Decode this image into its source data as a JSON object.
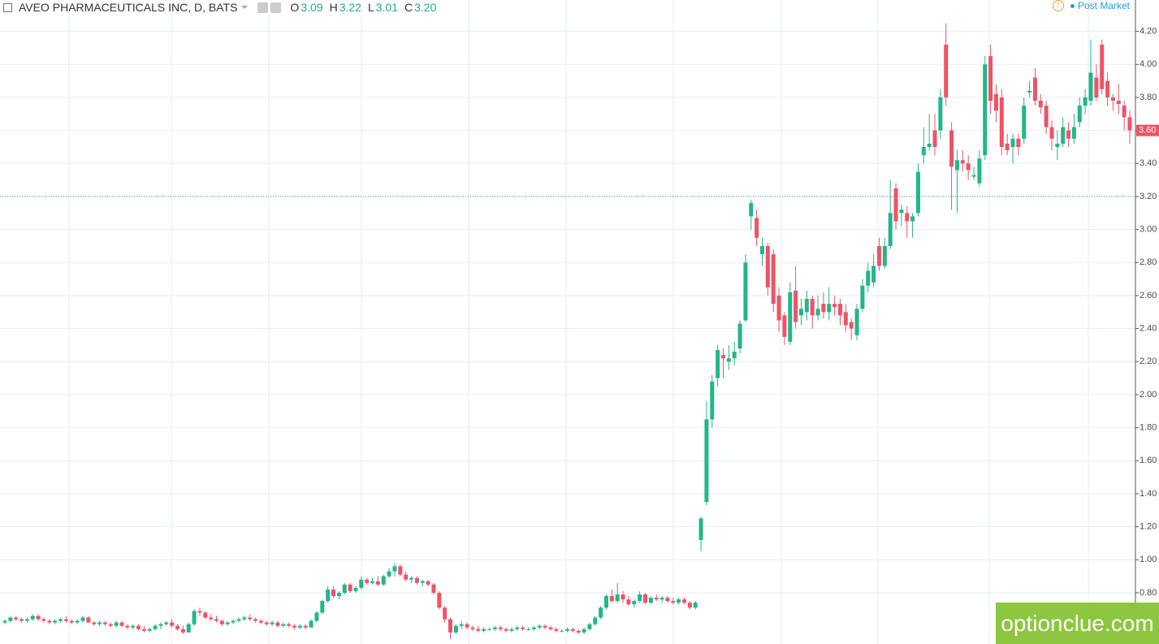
{
  "chart_data": {
    "type": "candlestick",
    "title": "AVEO PHARMACEUTICALS INC, D, BATS",
    "ohlc_legend": [
      {
        "key": "O",
        "value": "3.09"
      },
      {
        "key": "H",
        "value": "3.22"
      },
      {
        "key": "L",
        "value": "3.01"
      },
      {
        "key": "C",
        "value": "3.20"
      }
    ],
    "session_label": "Post Market",
    "watermark": "optionclue.com",
    "up_color": "#22b68a",
    "down_color": "#ee5366",
    "ylim": [
      0.49,
      4.39
    ],
    "yticks": [
      {
        "value": 0.8,
        "label": "0.80"
      },
      {
        "value": 1,
        "label": "1.00"
      },
      {
        "value": 1.2,
        "label": "1.20"
      },
      {
        "value": 1.4,
        "label": "1.40"
      },
      {
        "value": 1.6,
        "label": "1.60"
      },
      {
        "value": 1.8,
        "label": "1.80"
      },
      {
        "value": 2,
        "label": "2.00"
      },
      {
        "value": 2.2,
        "label": "2.20"
      },
      {
        "value": 2.4,
        "label": "2.40"
      },
      {
        "value": 2.6,
        "label": "2.60"
      },
      {
        "value": 2.8,
        "label": "2.80"
      },
      {
        "value": 3,
        "label": "3.00"
      },
      {
        "value": 3.2,
        "label": "3.20"
      },
      {
        "value": 3.4,
        "label": "3.40"
      },
      {
        "value": 3.6,
        "label": "3.60"
      },
      {
        "value": 3.8,
        "label": "3.80"
      },
      {
        "value": 4,
        "label": "4.00"
      },
      {
        "value": 4.2,
        "label": "4.20"
      }
    ],
    "grid": true,
    "price_line": 3.2,
    "last_price": {
      "value": 3.6,
      "label": "3.60"
    },
    "candles": [
      [
        0.62,
        0.64,
        0.61,
        0.63
      ],
      [
        0.63,
        0.66,
        0.62,
        0.65
      ],
      [
        0.65,
        0.66,
        0.63,
        0.64
      ],
      [
        0.64,
        0.65,
        0.62,
        0.63
      ],
      [
        0.63,
        0.65,
        0.62,
        0.64
      ],
      [
        0.64,
        0.67,
        0.63,
        0.66
      ],
      [
        0.66,
        0.67,
        0.63,
        0.64
      ],
      [
        0.64,
        0.65,
        0.62,
        0.63
      ],
      [
        0.63,
        0.64,
        0.61,
        0.62
      ],
      [
        0.62,
        0.64,
        0.61,
        0.63
      ],
      [
        0.63,
        0.65,
        0.62,
        0.64
      ],
      [
        0.64,
        0.66,
        0.62,
        0.63
      ],
      [
        0.63,
        0.64,
        0.61,
        0.62
      ],
      [
        0.62,
        0.64,
        0.61,
        0.63
      ],
      [
        0.63,
        0.66,
        0.62,
        0.65
      ],
      [
        0.65,
        0.66,
        0.62,
        0.62
      ],
      [
        0.62,
        0.63,
        0.6,
        0.61
      ],
      [
        0.61,
        0.63,
        0.6,
        0.62
      ],
      [
        0.62,
        0.63,
        0.6,
        0.61
      ],
      [
        0.61,
        0.62,
        0.59,
        0.6
      ],
      [
        0.6,
        0.63,
        0.59,
        0.62
      ],
      [
        0.62,
        0.63,
        0.59,
        0.6
      ],
      [
        0.6,
        0.61,
        0.58,
        0.59
      ],
      [
        0.59,
        0.61,
        0.58,
        0.6
      ],
      [
        0.6,
        0.61,
        0.57,
        0.58
      ],
      [
        0.58,
        0.6,
        0.56,
        0.57
      ],
      [
        0.57,
        0.59,
        0.56,
        0.58
      ],
      [
        0.58,
        0.61,
        0.57,
        0.6
      ],
      [
        0.6,
        0.62,
        0.58,
        0.61
      ],
      [
        0.61,
        0.63,
        0.6,
        0.62
      ],
      [
        0.62,
        0.64,
        0.59,
        0.6
      ],
      [
        0.6,
        0.61,
        0.57,
        0.58
      ],
      [
        0.58,
        0.6,
        0.55,
        0.56
      ],
      [
        0.56,
        0.62,
        0.56,
        0.61
      ],
      [
        0.61,
        0.7,
        0.6,
        0.69
      ],
      [
        0.69,
        0.71,
        0.66,
        0.68
      ],
      [
        0.68,
        0.69,
        0.64,
        0.65
      ],
      [
        0.65,
        0.67,
        0.63,
        0.64
      ],
      [
        0.64,
        0.66,
        0.62,
        0.63
      ],
      [
        0.63,
        0.64,
        0.6,
        0.61
      ],
      [
        0.61,
        0.63,
        0.6,
        0.62
      ],
      [
        0.62,
        0.64,
        0.61,
        0.63
      ],
      [
        0.63,
        0.65,
        0.62,
        0.64
      ],
      [
        0.64,
        0.66,
        0.63,
        0.65
      ],
      [
        0.65,
        0.67,
        0.63,
        0.64
      ],
      [
        0.64,
        0.65,
        0.62,
        0.63
      ],
      [
        0.63,
        0.64,
        0.61,
        0.62
      ],
      [
        0.62,
        0.63,
        0.6,
        0.61
      ],
      [
        0.61,
        0.63,
        0.6,
        0.62
      ],
      [
        0.62,
        0.63,
        0.59,
        0.6
      ],
      [
        0.6,
        0.62,
        0.59,
        0.61
      ],
      [
        0.61,
        0.62,
        0.59,
        0.6
      ],
      [
        0.6,
        0.61,
        0.58,
        0.59
      ],
      [
        0.59,
        0.61,
        0.58,
        0.6
      ],
      [
        0.6,
        0.61,
        0.58,
        0.59
      ],
      [
        0.59,
        0.64,
        0.59,
        0.63
      ],
      [
        0.63,
        0.69,
        0.62,
        0.68
      ],
      [
        0.68,
        0.76,
        0.67,
        0.75
      ],
      [
        0.75,
        0.84,
        0.74,
        0.82
      ],
      [
        0.82,
        0.84,
        0.77,
        0.78
      ],
      [
        0.78,
        0.81,
        0.76,
        0.8
      ],
      [
        0.8,
        0.86,
        0.79,
        0.85
      ],
      [
        0.85,
        0.86,
        0.8,
        0.81
      ],
      [
        0.81,
        0.84,
        0.8,
        0.83
      ],
      [
        0.83,
        0.9,
        0.82,
        0.88
      ],
      [
        0.88,
        0.89,
        0.85,
        0.86
      ],
      [
        0.86,
        0.89,
        0.85,
        0.87
      ],
      [
        0.87,
        0.9,
        0.84,
        0.85
      ],
      [
        0.85,
        0.91,
        0.84,
        0.9
      ],
      [
        0.9,
        0.95,
        0.89,
        0.93
      ],
      [
        0.93,
        0.98,
        0.9,
        0.96
      ],
      [
        0.96,
        0.97,
        0.9,
        0.91
      ],
      [
        0.91,
        0.93,
        0.87,
        0.88
      ],
      [
        0.88,
        0.9,
        0.86,
        0.89
      ],
      [
        0.89,
        0.9,
        0.85,
        0.86
      ],
      [
        0.86,
        0.88,
        0.84,
        0.87
      ],
      [
        0.87,
        0.88,
        0.84,
        0.85
      ],
      [
        0.85,
        0.86,
        0.79,
        0.8
      ],
      [
        0.8,
        0.81,
        0.7,
        0.71
      ],
      [
        0.71,
        0.72,
        0.62,
        0.64
      ],
      [
        0.64,
        0.65,
        0.52,
        0.56
      ],
      [
        0.56,
        0.61,
        0.55,
        0.6
      ],
      [
        0.6,
        0.63,
        0.58,
        0.61
      ],
      [
        0.61,
        0.62,
        0.58,
        0.59
      ],
      [
        0.59,
        0.6,
        0.57,
        0.58
      ],
      [
        0.58,
        0.6,
        0.56,
        0.57
      ],
      [
        0.57,
        0.59,
        0.56,
        0.58
      ],
      [
        0.58,
        0.59,
        0.57,
        0.58
      ],
      [
        0.58,
        0.6,
        0.57,
        0.59
      ],
      [
        0.59,
        0.6,
        0.57,
        0.58
      ],
      [
        0.58,
        0.59,
        0.56,
        0.57
      ],
      [
        0.57,
        0.59,
        0.56,
        0.58
      ],
      [
        0.58,
        0.6,
        0.57,
        0.59
      ],
      [
        0.59,
        0.6,
        0.57,
        0.58
      ],
      [
        0.58,
        0.59,
        0.57,
        0.58
      ],
      [
        0.58,
        0.6,
        0.57,
        0.59
      ],
      [
        0.59,
        0.61,
        0.58,
        0.6
      ],
      [
        0.6,
        0.61,
        0.58,
        0.59
      ],
      [
        0.59,
        0.6,
        0.57,
        0.58
      ],
      [
        0.58,
        0.59,
        0.56,
        0.57
      ],
      [
        0.57,
        0.58,
        0.56,
        0.57
      ],
      [
        0.57,
        0.59,
        0.56,
        0.58
      ],
      [
        0.58,
        0.59,
        0.56,
        0.57
      ],
      [
        0.57,
        0.58,
        0.55,
        0.56
      ],
      [
        0.56,
        0.59,
        0.55,
        0.58
      ],
      [
        0.58,
        0.62,
        0.57,
        0.61
      ],
      [
        0.61,
        0.66,
        0.6,
        0.65
      ],
      [
        0.65,
        0.72,
        0.64,
        0.71
      ],
      [
        0.71,
        0.79,
        0.7,
        0.78
      ],
      [
        0.78,
        0.82,
        0.74,
        0.75
      ],
      [
        0.75,
        0.86,
        0.74,
        0.79
      ],
      [
        0.79,
        0.81,
        0.74,
        0.76
      ],
      [
        0.76,
        0.78,
        0.72,
        0.73
      ],
      [
        0.73,
        0.76,
        0.71,
        0.75
      ],
      [
        0.75,
        0.81,
        0.74,
        0.79
      ],
      [
        0.79,
        0.8,
        0.73,
        0.74
      ],
      [
        0.74,
        0.78,
        0.73,
        0.77
      ],
      [
        0.77,
        0.79,
        0.75,
        0.76
      ],
      [
        0.76,
        0.78,
        0.74,
        0.77
      ],
      [
        0.77,
        0.78,
        0.74,
        0.75
      ],
      [
        0.75,
        0.77,
        0.73,
        0.74
      ],
      [
        0.74,
        0.77,
        0.73,
        0.76
      ],
      [
        0.76,
        0.77,
        0.73,
        0.74
      ],
      [
        0.74,
        0.75,
        0.7,
        0.71
      ],
      [
        0.71,
        0.75,
        0.7,
        0.74
      ],
      [
        1.12,
        1.26,
        1.05,
        1.25
      ],
      [
        1.35,
        1.96,
        1.33,
        1.85
      ],
      [
        1.85,
        2.12,
        1.8,
        2.08
      ],
      [
        2.1,
        2.3,
        2.05,
        2.27
      ],
      [
        2.24,
        2.28,
        2.1,
        2.22
      ],
      [
        2.2,
        2.3,
        2.15,
        2.22
      ],
      [
        2.22,
        2.32,
        2.18,
        2.26
      ],
      [
        2.28,
        2.45,
        2.25,
        2.43
      ],
      [
        2.45,
        2.85,
        2.44,
        2.8
      ],
      [
        3.08,
        3.18,
        3.0,
        3.16
      ],
      [
        3.07,
        3.12,
        2.9,
        2.95
      ],
      [
        2.85,
        2.95,
        2.78,
        2.9
      ],
      [
        2.9,
        2.92,
        2.6,
        2.65
      ],
      [
        2.85,
        2.88,
        2.5,
        2.55
      ],
      [
        2.6,
        2.65,
        2.38,
        2.45
      ],
      [
        2.48,
        2.5,
        2.3,
        2.35
      ],
      [
        2.32,
        2.68,
        2.3,
        2.62
      ],
      [
        2.63,
        2.78,
        2.4,
        2.44
      ],
      [
        2.48,
        2.58,
        2.42,
        2.52
      ],
      [
        2.5,
        2.63,
        2.45,
        2.58
      ],
      [
        2.58,
        2.6,
        2.4,
        2.48
      ],
      [
        2.48,
        2.6,
        2.45,
        2.52
      ],
      [
        2.55,
        2.62,
        2.46,
        2.5
      ],
      [
        2.5,
        2.65,
        2.45,
        2.55
      ],
      [
        2.55,
        2.6,
        2.48,
        2.53
      ],
      [
        2.55,
        2.58,
        2.42,
        2.48
      ],
      [
        2.5,
        2.55,
        2.38,
        2.42
      ],
      [
        2.44,
        2.46,
        2.33,
        2.4
      ],
      [
        2.36,
        2.55,
        2.33,
        2.52
      ],
      [
        2.52,
        2.7,
        2.5,
        2.66
      ],
      [
        2.66,
        2.8,
        2.62,
        2.75
      ],
      [
        2.68,
        2.85,
        2.65,
        2.78
      ],
      [
        2.9,
        2.95,
        2.75,
        2.78
      ],
      [
        2.78,
        2.95,
        2.76,
        2.9
      ],
      [
        2.9,
        3.3,
        2.88,
        3.1
      ],
      [
        3.25,
        3.28,
        3.0,
        3.05
      ],
      [
        3.1,
        3.15,
        3.02,
        3.12
      ],
      [
        3.1,
        3.14,
        2.95,
        3.05
      ],
      [
        3.05,
        3.1,
        2.95,
        3.08
      ],
      [
        3.1,
        3.4,
        3.08,
        3.35
      ],
      [
        3.45,
        3.62,
        3.4,
        3.5
      ],
      [
        3.5,
        3.7,
        3.48,
        3.52
      ],
      [
        3.6,
        3.7,
        3.45,
        3.5
      ],
      [
        3.6,
        3.85,
        3.55,
        3.8
      ],
      [
        4.12,
        4.25,
        3.75,
        3.8
      ],
      [
        3.6,
        3.65,
        3.12,
        3.38
      ],
      [
        3.36,
        3.48,
        3.1,
        3.42
      ],
      [
        3.42,
        3.48,
        3.35,
        3.4
      ],
      [
        3.4,
        3.45,
        3.3,
        3.36
      ],
      [
        3.32,
        3.38,
        3.3,
        3.33
      ],
      [
        3.28,
        3.48,
        3.26,
        3.43
      ],
      [
        3.45,
        4.05,
        3.42,
        4.0
      ],
      [
        4.05,
        4.12,
        3.7,
        3.78
      ],
      [
        3.82,
        3.88,
        3.65,
        3.72
      ],
      [
        3.8,
        3.85,
        3.45,
        3.5
      ],
      [
        3.52,
        3.58,
        3.45,
        3.48
      ],
      [
        3.5,
        3.58,
        3.4,
        3.55
      ],
      [
        3.55,
        3.58,
        3.45,
        3.5
      ],
      [
        3.55,
        3.8,
        3.52,
        3.75
      ],
      [
        3.83,
        3.9,
        3.8,
        3.84
      ],
      [
        3.92,
        3.98,
        3.75,
        3.78
      ],
      [
        3.78,
        3.82,
        3.7,
        3.74
      ],
      [
        3.75,
        3.78,
        3.58,
        3.62
      ],
      [
        3.62,
        3.66,
        3.48,
        3.55
      ],
      [
        3.5,
        3.6,
        3.42,
        3.52
      ],
      [
        3.52,
        3.68,
        3.5,
        3.62
      ],
      [
        3.6,
        3.65,
        3.5,
        3.55
      ],
      [
        3.55,
        3.7,
        3.52,
        3.62
      ],
      [
        3.65,
        3.8,
        3.62,
        3.75
      ],
      [
        3.75,
        3.85,
        3.7,
        3.8
      ],
      [
        3.78,
        4.15,
        3.75,
        3.95
      ],
      [
        3.92,
        4.0,
        3.78,
        3.8
      ],
      [
        4.12,
        4.15,
        3.82,
        3.85
      ],
      [
        3.9,
        3.95,
        3.75,
        3.8
      ],
      [
        3.8,
        3.82,
        3.72,
        3.78
      ],
      [
        3.78,
        3.88,
        3.7,
        3.76
      ],
      [
        3.75,
        3.78,
        3.6,
        3.68
      ],
      [
        3.68,
        3.72,
        3.52,
        3.6
      ]
    ]
  }
}
